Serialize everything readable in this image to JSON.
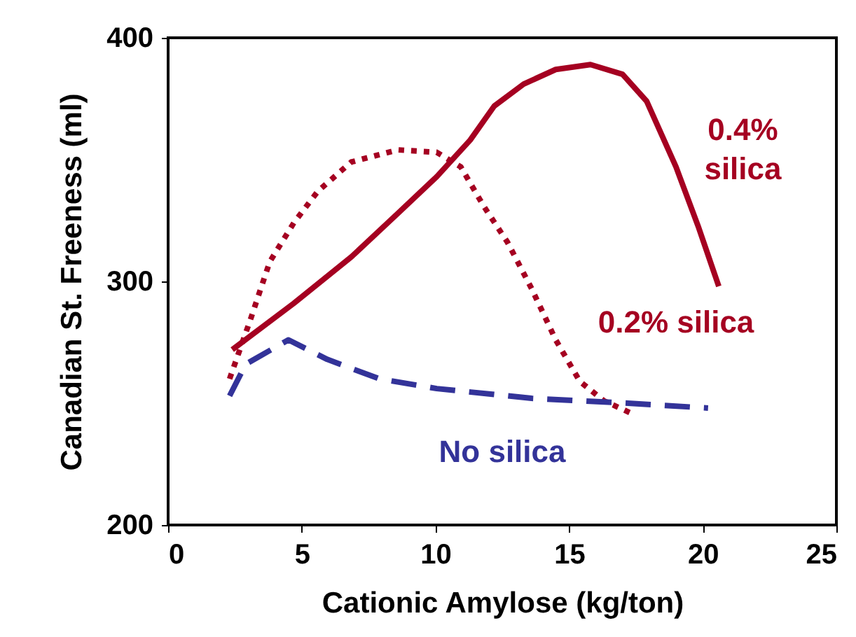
{
  "chart_data": {
    "type": "line",
    "xlabel": "Cationic Amylose   (kg/ton)",
    "ylabel": "Canadian St. Freeness  (ml)",
    "xlim": [
      0,
      25
    ],
    "xticks": [
      0,
      5,
      10,
      15,
      20,
      25
    ],
    "ylim": [
      200,
      400
    ],
    "yticks": [
      200,
      300,
      400
    ],
    "grid": false,
    "legend": false,
    "marker": "none",
    "series": [
      {
        "name": "0.4% silica",
        "color": "#a50021",
        "line_style": "solid",
        "x": [
          2.4,
          4.7,
          6.85,
          8.6,
          10.05,
          11.3,
          12.2,
          13.3,
          14.5,
          15.8,
          17.0,
          17.9,
          19.0,
          19.85,
          20.6
        ],
        "values": [
          272,
          291,
          310,
          328,
          343,
          358,
          372,
          381,
          387,
          389,
          385,
          374,
          347,
          322,
          298
        ]
      },
      {
        "name": "0.2%  silica",
        "color": "#a50021",
        "line_style": "dotted",
        "x": [
          2.3,
          3.1,
          3.8,
          4.7,
          5.6,
          6.85,
          8.6,
          10.05,
          10.95,
          11.8,
          12.7,
          13.6,
          14.5,
          15.4,
          16.3,
          17.5
        ],
        "values": [
          260,
          285,
          308,
          324,
          337,
          349,
          354,
          353,
          347,
          331,
          316,
          297,
          276,
          259,
          251,
          245
        ]
      },
      {
        "name": "No silica",
        "color": "#333399",
        "line_style": "dashed",
        "x": [
          2.3,
          2.9,
          4.5,
          5.95,
          7.9,
          10.05,
          13.6,
          17.2,
          20.2
        ],
        "values": [
          253,
          266,
          276,
          268,
          260,
          256,
          252,
          250,
          248
        ]
      }
    ]
  }
}
